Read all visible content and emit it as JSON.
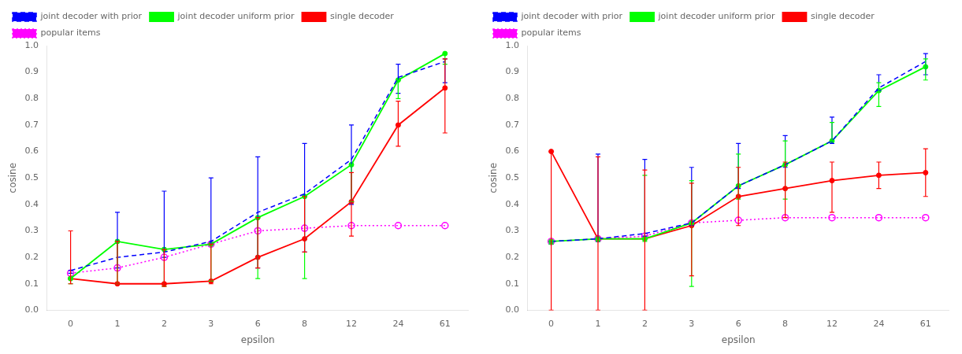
{
  "chart_data": [
    {
      "type": "line",
      "categories": [
        "0",
        "1",
        "2",
        "3",
        "6",
        "8",
        "12",
        "24",
        "61"
      ],
      "xlabel": "epsilon",
      "ylabel": "cosine",
      "ylim": [
        0,
        1.0
      ],
      "yticks": [
        {
          "value": 0,
          "label": "0.0"
        },
        0.1,
        0.2,
        0.3,
        0.4,
        0.5,
        0.6,
        0.7,
        0.8,
        0.9,
        {
          "value": 1.0,
          "label": "1.0"
        }
      ],
      "grid": false,
      "legend": "upper left",
      "series": [
        {
          "name": "joint decoder with prior",
          "color": "blue",
          "line_style": "dashed",
          "marker": "none",
          "values": [
            0.15,
            0.2,
            0.22,
            0.26,
            0.37,
            0.44,
            0.57,
            0.88,
            0.94
          ],
          "error_lo": [
            0.14,
            0.16,
            0.2,
            0.25,
            0.16,
            0.22,
            0.4,
            0.82,
            0.86
          ],
          "error_hi": [
            0.15,
            0.37,
            0.45,
            0.5,
            0.58,
            0.63,
            0.7,
            0.93,
            0.95
          ]
        },
        {
          "name": "joint decoder uniform prior",
          "color": "lime",
          "line_style": "solid",
          "marker": "circle",
          "values": [
            0.12,
            0.26,
            0.23,
            0.25,
            0.35,
            0.43,
            0.55,
            0.87,
            0.97
          ],
          "error_lo": [
            0.1,
            0.1,
            0.09,
            0.11,
            0.12,
            0.12,
            0.41,
            0.8,
            0.93
          ],
          "error_hi": [
            0.12,
            0.26,
            0.23,
            0.25,
            0.35,
            0.43,
            0.55,
            0.87,
            0.97
          ]
        },
        {
          "name": "single decoder",
          "color": "red",
          "line_style": "solid",
          "marker": "circle",
          "values": [
            0.12,
            0.1,
            0.1,
            0.11,
            0.2,
            0.27,
            0.41,
            0.7,
            0.84
          ],
          "error_lo": [
            0.1,
            0.1,
            0.09,
            0.1,
            0.16,
            0.22,
            0.28,
            0.62,
            0.67
          ],
          "error_hi": [
            0.3,
            0.26,
            0.23,
            0.25,
            0.35,
            0.43,
            0.52,
            0.79,
            0.95
          ]
        },
        {
          "name": "popular items",
          "color": "magenta",
          "line_style": "dotted",
          "marker": "circle_open",
          "values": [
            0.14,
            0.16,
            0.2,
            0.25,
            0.3,
            0.31,
            0.32,
            0.32,
            0.32
          ]
        }
      ]
    },
    {
      "type": "line",
      "categories": [
        "0",
        "1",
        "2",
        "3",
        "6",
        "8",
        "12",
        "24",
        "61"
      ],
      "xlabel": "epsilon",
      "ylabel": "cosine",
      "ylim": [
        0,
        1.0
      ],
      "yticks": [
        {
          "value": 0,
          "label": "0.0"
        },
        0.1,
        0.2,
        0.3,
        0.4,
        0.5,
        0.6,
        0.7,
        0.8,
        0.9,
        {
          "value": 1.0,
          "label": "1.0"
        }
      ],
      "grid": false,
      "legend": "upper left",
      "series": [
        {
          "name": "joint decoder with prior",
          "color": "blue",
          "line_style": "dashed",
          "marker": "none",
          "values": [
            0.26,
            0.27,
            0.29,
            0.33,
            0.47,
            0.55,
            0.64,
            0.84,
            0.94
          ],
          "error_lo": [
            0.25,
            0.26,
            0.28,
            0.32,
            0.46,
            0.54,
            0.63,
            0.83,
            0.89
          ],
          "error_hi": [
            0.26,
            0.59,
            0.57,
            0.54,
            0.63,
            0.66,
            0.73,
            0.89,
            0.97
          ]
        },
        {
          "name": "joint decoder uniform prior",
          "color": "lime",
          "line_style": "solid",
          "marker": "circle",
          "values": [
            0.26,
            0.27,
            0.27,
            0.33,
            0.47,
            0.55,
            0.64,
            0.83,
            0.92
          ],
          "error_lo": [
            0.25,
            0.26,
            0.26,
            0.09,
            0.42,
            0.42,
            0.64,
            0.77,
            0.87
          ],
          "error_hi": [
            0.26,
            0.27,
            0.51,
            0.49,
            0.59,
            0.64,
            0.71,
            0.86,
            0.95
          ]
        },
        {
          "name": "single decoder",
          "color": "red",
          "line_style": "solid",
          "marker": "circle",
          "values": [
            0.6,
            0.27,
            0.27,
            0.32,
            0.43,
            0.46,
            0.49,
            0.51,
            0.52
          ],
          "error_lo": [
            0.0,
            0.0,
            0.0,
            0.13,
            0.32,
            0.35,
            0.37,
            0.46,
            0.43
          ],
          "error_hi": [
            0.6,
            0.58,
            0.53,
            0.48,
            0.54,
            0.56,
            0.56,
            0.56,
            0.61
          ]
        },
        {
          "name": "popular items",
          "color": "magenta",
          "line_style": "dotted",
          "marker": "circle_open",
          "values": [
            0.26,
            0.27,
            0.28,
            0.33,
            0.34,
            0.35,
            0.35,
            0.35,
            0.35
          ]
        }
      ]
    }
  ]
}
